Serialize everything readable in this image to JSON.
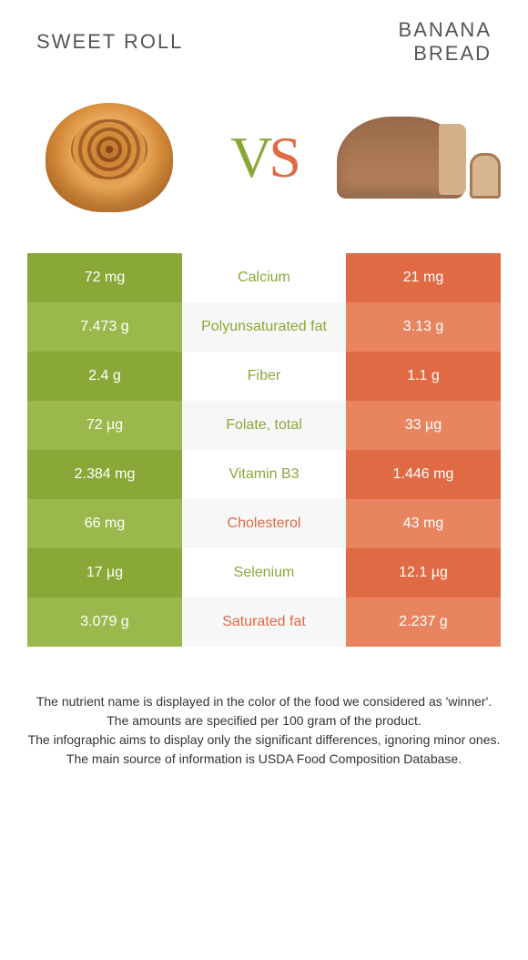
{
  "header": {
    "left_title": "Sweet roll",
    "right_title_line1": "Banana",
    "right_title_line2": "bread",
    "vs_v": "V",
    "vs_s": "S"
  },
  "colors": {
    "left_main": "#8aa838",
    "left_alt": "#9bb84c",
    "right_main": "#e06a44",
    "right_alt": "#e88560",
    "mid_winner_left": "#8aa838",
    "mid_winner_right": "#e06a44",
    "row_alt_bg": "#f7f7f7",
    "row_bg": "#ffffff"
  },
  "nutrients": [
    {
      "name": "Calcium",
      "left": "72 mg",
      "right": "21 mg",
      "winner": "left"
    },
    {
      "name": "Polyunsaturated fat",
      "left": "7.473 g",
      "right": "3.13 g",
      "winner": "left"
    },
    {
      "name": "Fiber",
      "left": "2.4 g",
      "right": "1.1 g",
      "winner": "left"
    },
    {
      "name": "Folate, total",
      "left": "72 µg",
      "right": "33 µg",
      "winner": "left"
    },
    {
      "name": "Vitamin B3",
      "left": "2.384 mg",
      "right": "1.446 mg",
      "winner": "left"
    },
    {
      "name": "Cholesterol",
      "left": "66 mg",
      "right": "43 mg",
      "winner": "right"
    },
    {
      "name": "Selenium",
      "left": "17 µg",
      "right": "12.1 µg",
      "winner": "left"
    },
    {
      "name": "Saturated fat",
      "left": "3.079 g",
      "right": "2.237 g",
      "winner": "right"
    }
  ],
  "footer": {
    "line1": "The nutrient name is displayed in the color of the food we considered as 'winner'.",
    "line2": "The amounts are specified per 100 gram of the product.",
    "line3": "The infographic aims to display only the significant differences, ignoring minor ones.",
    "line4": "The main source of information is USDA Food Composition Database."
  }
}
